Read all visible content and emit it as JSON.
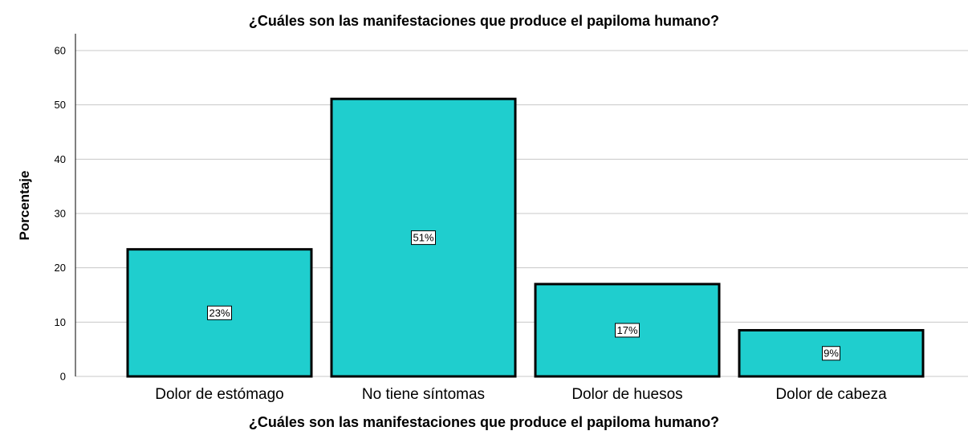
{
  "chart_data": {
    "type": "bar",
    "title": "¿Cuáles son las manifestaciones que produce el papiloma humano?",
    "xlabel": "¿Cuáles son las manifestaciones que produce el papiloma humano?",
    "ylabel": "Porcentaje",
    "categories": [
      "Dolor de estómago",
      "No tiene síntomas",
      "Dolor de huesos",
      "Dolor de cabeza"
    ],
    "values": [
      23.4,
      51.1,
      17.0,
      8.5
    ],
    "data_labels": [
      "23%",
      "51%",
      "17%",
      "9%"
    ],
    "yticks": [
      "0",
      "10",
      "20",
      "30",
      "40",
      "50",
      "60"
    ],
    "ylim": [
      0,
      60
    ],
    "grid": "horizontal",
    "colors": {
      "bar_fill": "#1fcece",
      "bar_stroke": "#000000",
      "grid": "#c8c8c8"
    }
  }
}
